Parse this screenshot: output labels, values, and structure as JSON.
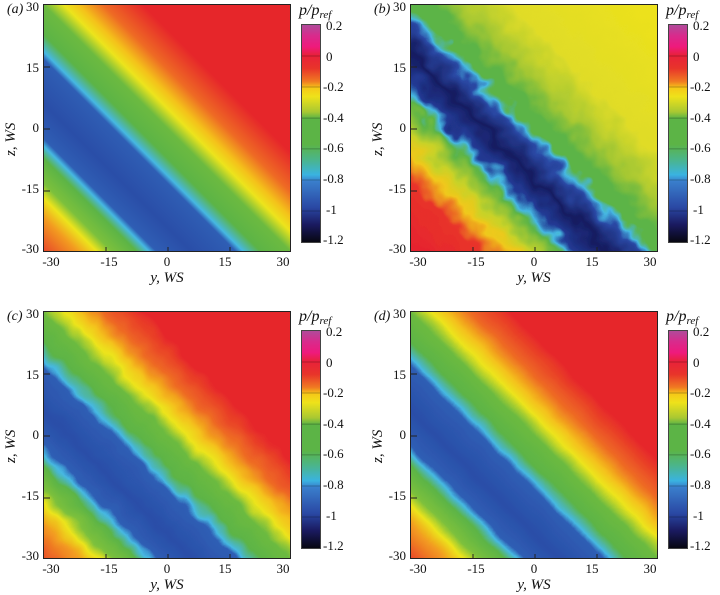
{
  "figure": {
    "panels": [
      {
        "label": "(a)",
        "variant": "smooth"
      },
      {
        "label": "(b)",
        "variant": "noisy"
      },
      {
        "label": "(c)",
        "variant": "mild"
      },
      {
        "label": "(d)",
        "variant": "slight"
      }
    ],
    "xlabel": "y, WS",
    "ylabel": "z, WS",
    "xticks": [
      "-30",
      "-15",
      "0",
      "15",
      "30"
    ],
    "yticks": [
      "30",
      "15",
      "0",
      "-15",
      "-30"
    ],
    "colorbar": {
      "title_main": "p/p",
      "title_sub": "ref",
      "ticks": [
        "0.2",
        "0",
        "-0.2",
        "-0.4",
        "-0.6",
        "-0.8",
        "-1",
        "-1.2"
      ]
    }
  },
  "chart_data": [
    {
      "type": "heatmap",
      "panel": "(a)",
      "title": "",
      "xlabel": "y, WS",
      "ylabel": "z, WS",
      "xlim": [
        -32,
        32
      ],
      "ylim": [
        -32,
        32
      ],
      "xticks": [
        -30,
        -15,
        0,
        15,
        30
      ],
      "yticks": [
        -30,
        15,
        0,
        -15,
        30
      ],
      "colorbar": {
        "label": "p/p_ref",
        "range": [
          -1.2,
          0.2
        ],
        "ticks": [
          0.2,
          0,
          -0.2,
          -0.4,
          -0.6,
          -0.8,
          -1,
          -1.2
        ]
      },
      "description": "Smooth diagonal band of low pressure (~-1) along y+z≈0 line offset; flanked by green (-0.5) and yellow (-0.25) bands; red (~0) in top-right and bottom-left corners",
      "band_center_offset": 0,
      "min_value": -1.0,
      "max_value": 0.0
    },
    {
      "type": "heatmap",
      "panel": "(b)",
      "xlabel": "y, WS",
      "ylabel": "z, WS",
      "xlim": [
        -32,
        32
      ],
      "ylim": [
        -32,
        32
      ],
      "colorbar": {
        "label": "p/p_ref",
        "range": [
          -1.2,
          0.2
        ]
      },
      "description": "Noisy instantaneous field: dark blue band (-1 to -1.2) along diagonal shifted toward upper-left; green/yellow top-right (-0.3), red/magenta bottom-left (0 to 0.1)",
      "min_value": -1.2,
      "max_value": 0.1
    },
    {
      "type": "heatmap",
      "panel": "(c)",
      "xlabel": "y, WS",
      "ylabel": "z, WS",
      "xlim": [
        -32,
        32
      ],
      "ylim": [
        -32,
        32
      ],
      "colorbar": {
        "label": "p/p_ref",
        "range": [
          -1.2,
          0.2
        ]
      },
      "description": "Similar to (a) with slightly wavy contours; blue band ~-1 along diagonal",
      "min_value": -1.0,
      "max_value": 0.0
    },
    {
      "type": "heatmap",
      "panel": "(d)",
      "xlabel": "y, WS",
      "ylabel": "z, WS",
      "xlim": [
        -32,
        32
      ],
      "ylim": [
        -32,
        32
      ],
      "colorbar": {
        "label": "p/p_ref",
        "range": [
          -1.2,
          0.2
        ]
      },
      "description": "Nearly smooth, like (a) with very slight contour ripples",
      "min_value": -1.0,
      "max_value": 0.0
    }
  ]
}
